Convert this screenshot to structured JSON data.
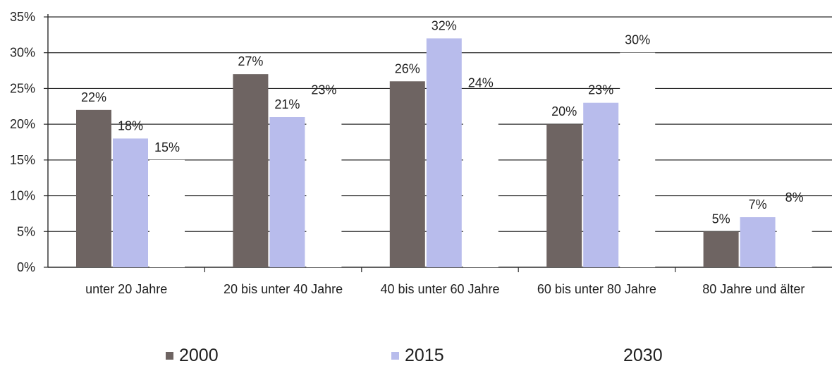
{
  "chart_data": {
    "type": "bar",
    "categories": [
      "unter 20 Jahre",
      "20 bis unter 40 Jahre",
      "40 bis unter 60 Jahre",
      "60 bis unter 80 Jahre",
      "80 Jahre und älter"
    ],
    "series": [
      {
        "name": "2000",
        "values": [
          22,
          27,
          26,
          20,
          5
        ],
        "labels": [
          "22%",
          "27%",
          "26%",
          "20%",
          "5%"
        ],
        "color": "#6e6462"
      },
      {
        "name": "2015",
        "values": [
          18,
          21,
          32,
          23,
          7
        ],
        "labels": [
          "18%",
          "21%",
          "32%",
          "23%",
          "7%"
        ],
        "color": "#b8bcec"
      },
      {
        "name": "2030",
        "values": [
          15,
          23,
          24,
          30,
          8
        ],
        "labels": [
          "15%",
          "23%",
          "24%",
          "30%",
          "8%"
        ],
        "color": "#ffffff"
      }
    ],
    "yticks": [
      "0%",
      "5%",
      "10%",
      "15%",
      "20%",
      "25%",
      "30%",
      "35%"
    ],
    "ylim": [
      0,
      35
    ],
    "grid": true,
    "legend": "bottom"
  }
}
